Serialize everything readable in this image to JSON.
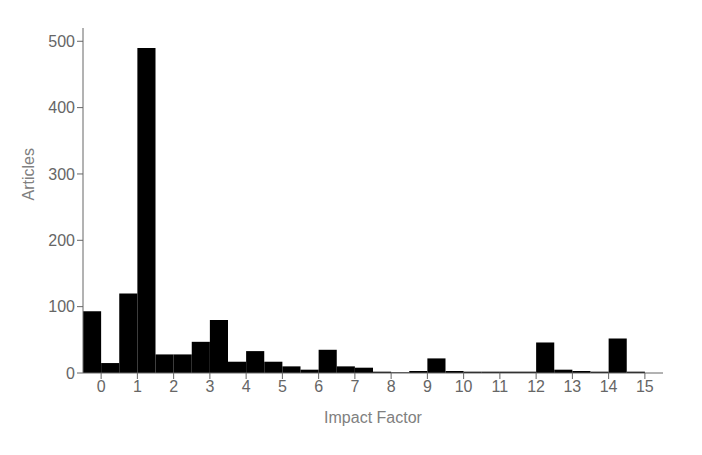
{
  "chart_data": {
    "type": "histogram",
    "xlabel": "Impact Factor",
    "ylabel": "Articles",
    "bins": [
      -0.5,
      0.0,
      0.5,
      1.0,
      1.5,
      2.0,
      2.5,
      3.0,
      3.5,
      4.0,
      4.5,
      5.0,
      5.5,
      6.0,
      6.5,
      7.0,
      7.5,
      8.0,
      8.5,
      9.0,
      9.5,
      10.0,
      10.5,
      11.0,
      11.5,
      12.0,
      12.5,
      13.0,
      13.5,
      14.0,
      14.5,
      15.0
    ],
    "values": [
      93,
      15,
      120,
      490,
      28,
      28,
      47,
      80,
      17,
      33,
      17,
      10,
      5,
      35,
      10,
      8,
      2,
      1,
      3,
      22,
      3,
      2,
      2,
      2,
      2,
      46,
      5,
      3,
      2,
      52,
      2
    ],
    "color": "#000000",
    "xlim": [
      -0.5,
      15.5
    ],
    "ylim": [
      0,
      520
    ],
    "xticks": [
      0,
      1,
      2,
      3,
      4,
      5,
      6,
      7,
      8,
      9,
      10,
      11,
      12,
      13,
      14,
      15
    ],
    "yticks": [
      0,
      100,
      200,
      300,
      400,
      500
    ],
    "grid": false
  }
}
